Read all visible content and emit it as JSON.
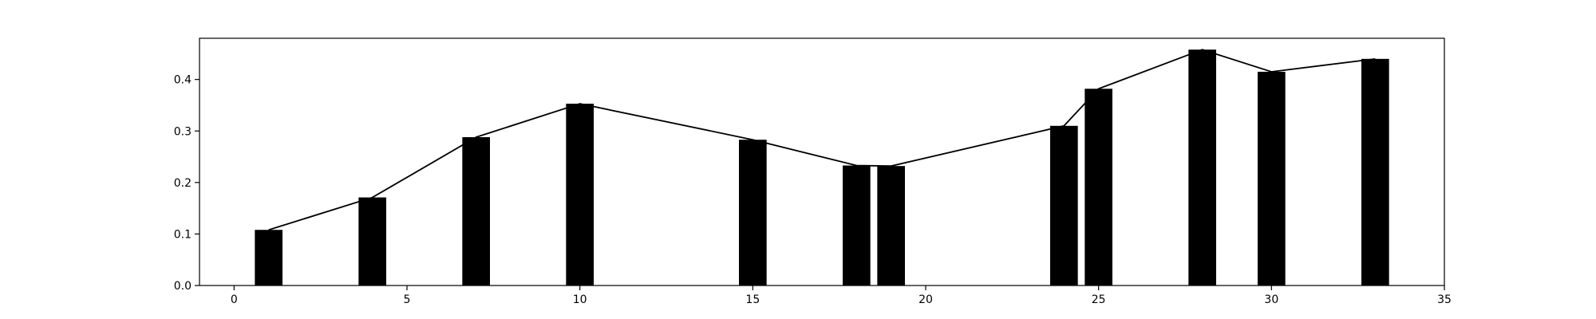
{
  "chart_data": {
    "type": "bar",
    "title": "",
    "xlabel": "",
    "ylabel": "",
    "xlim": [
      -1,
      35
    ],
    "ylim": [
      0,
      0.48
    ],
    "grid": false,
    "bar_color": "#000000",
    "line_color": "#000000",
    "bar_width": 0.8,
    "x": [
      1,
      4,
      7,
      10,
      15,
      18,
      19,
      24,
      25,
      28,
      30,
      33
    ],
    "values": [
      0.108,
      0.171,
      0.288,
      0.353,
      0.283,
      0.233,
      0.232,
      0.31,
      0.382,
      0.458,
      0.415,
      0.44
    ],
    "line": {
      "x": [
        1,
        4,
        7,
        10,
        15,
        18,
        19,
        24,
        25,
        28,
        30,
        33
      ],
      "values": [
        0.108,
        0.171,
        0.288,
        0.353,
        0.283,
        0.233,
        0.232,
        0.31,
        0.382,
        0.458,
        0.415,
        0.44
      ]
    },
    "xticks": [
      0,
      5,
      10,
      15,
      20,
      25,
      30,
      35
    ],
    "xtick_labels": [
      "0",
      "5",
      "10",
      "15",
      "20",
      "25",
      "30",
      "35"
    ],
    "yticks": [
      0.0,
      0.1,
      0.2,
      0.3,
      0.4
    ],
    "ytick_labels": [
      "0.0",
      "0.1",
      "0.2",
      "0.3",
      "0.4"
    ]
  }
}
